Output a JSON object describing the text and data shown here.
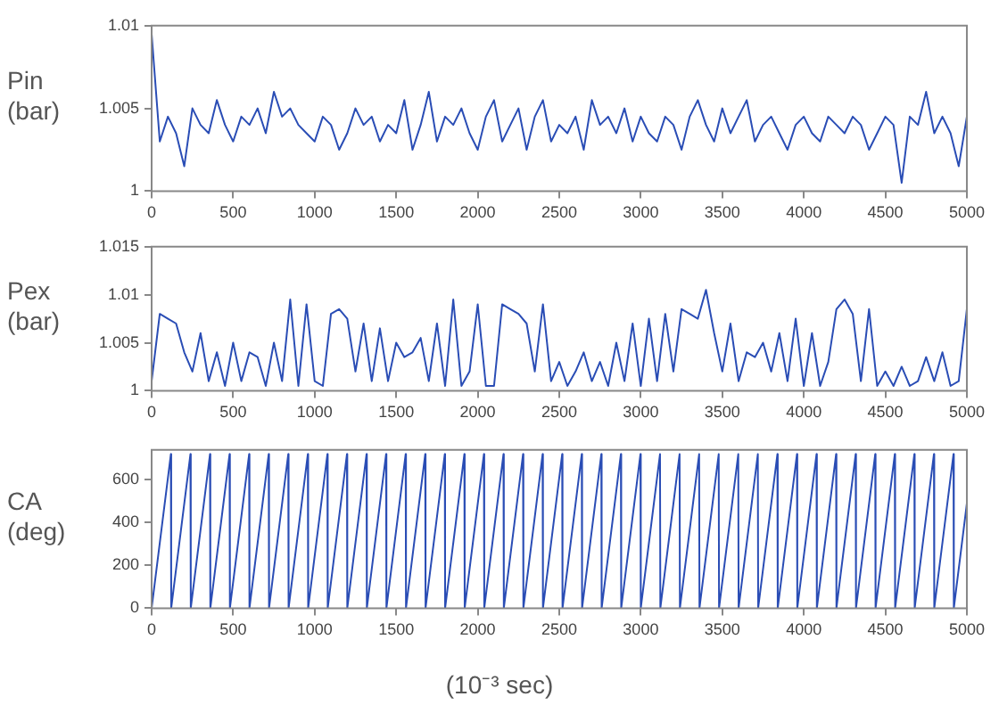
{
  "chart_data": [
    {
      "type": "line",
      "ylabel": "Pin (bar)",
      "color": "#2a4db5",
      "xlim": [
        0,
        5000
      ],
      "xticks": [
        0,
        500,
        1000,
        1500,
        2000,
        2500,
        3000,
        3500,
        4000,
        4500,
        5000
      ],
      "ylim": [
        1,
        1.01
      ],
      "yticks": [
        1,
        1.005,
        1.01
      ],
      "x": [
        0,
        50,
        100,
        150,
        200,
        250,
        300,
        350,
        400,
        450,
        500,
        550,
        600,
        650,
        700,
        750,
        800,
        850,
        900,
        950,
        1000,
        1050,
        1100,
        1150,
        1200,
        1250,
        1300,
        1350,
        1400,
        1450,
        1500,
        1550,
        1600,
        1650,
        1700,
        1750,
        1800,
        1850,
        1900,
        1950,
        2000,
        2050,
        2100,
        2150,
        2200,
        2250,
        2300,
        2350,
        2400,
        2450,
        2500,
        2550,
        2600,
        2650,
        2700,
        2750,
        2800,
        2850,
        2900,
        2950,
        3000,
        3050,
        3100,
        3150,
        3200,
        3250,
        3300,
        3350,
        3400,
        3450,
        3500,
        3550,
        3600,
        3650,
        3700,
        3750,
        3800,
        3850,
        3900,
        3950,
        4000,
        4050,
        4100,
        4150,
        4200,
        4250,
        4300,
        4350,
        4400,
        4450,
        4500,
        4550,
        4600,
        4650,
        4700,
        4750,
        4800,
        4850,
        4900,
        4950,
        5000
      ],
      "values": [
        1.0095,
        1.003,
        1.0045,
        1.0035,
        1.0015,
        1.005,
        1.004,
        1.0035,
        1.0055,
        1.004,
        1.003,
        1.0045,
        1.004,
        1.005,
        1.0035,
        1.006,
        1.0045,
        1.005,
        1.004,
        1.0035,
        1.003,
        1.0045,
        1.004,
        1.0025,
        1.0035,
        1.005,
        1.004,
        1.0045,
        1.003,
        1.004,
        1.0035,
        1.0055,
        1.0025,
        1.004,
        1.006,
        1.003,
        1.0045,
        1.004,
        1.005,
        1.0035,
        1.0025,
        1.0045,
        1.0055,
        1.003,
        1.004,
        1.005,
        1.0025,
        1.0045,
        1.0055,
        1.003,
        1.004,
        1.0035,
        1.0045,
        1.0025,
        1.0055,
        1.004,
        1.0045,
        1.0035,
        1.005,
        1.003,
        1.0045,
        1.0035,
        1.003,
        1.0045,
        1.004,
        1.0025,
        1.0045,
        1.0055,
        1.004,
        1.003,
        1.005,
        1.0035,
        1.0045,
        1.0055,
        1.003,
        1.004,
        1.0045,
        1.0035,
        1.0025,
        1.004,
        1.0045,
        1.0035,
        1.003,
        1.0045,
        1.004,
        1.0035,
        1.0045,
        1.004,
        1.0025,
        1.0035,
        1.0045,
        1.004,
        1.0005,
        1.0045,
        1.004,
        1.006,
        1.0035,
        1.0045,
        1.0035,
        1.0015,
        1.0045
      ]
    },
    {
      "type": "line",
      "ylabel": "Pex (bar)",
      "color": "#2a4db5",
      "xlim": [
        0,
        5000
      ],
      "xticks": [
        0,
        500,
        1000,
        1500,
        2000,
        2500,
        3000,
        3500,
        4000,
        4500,
        5000
      ],
      "ylim": [
        1,
        1.015
      ],
      "yticks": [
        1,
        1.005,
        1.01,
        1.015
      ],
      "x": [
        0,
        50,
        100,
        150,
        200,
        250,
        300,
        350,
        400,
        450,
        500,
        550,
        600,
        650,
        700,
        750,
        800,
        850,
        900,
        950,
        1000,
        1050,
        1100,
        1150,
        1200,
        1250,
        1300,
        1350,
        1400,
        1450,
        1500,
        1550,
        1600,
        1650,
        1700,
        1750,
        1800,
        1850,
        1900,
        1950,
        2000,
        2050,
        2100,
        2150,
        2200,
        2250,
        2300,
        2350,
        2400,
        2450,
        2500,
        2550,
        2600,
        2650,
        2700,
        2750,
        2800,
        2850,
        2900,
        2950,
        3000,
        3050,
        3100,
        3150,
        3200,
        3250,
        3300,
        3350,
        3400,
        3450,
        3500,
        3550,
        3600,
        3650,
        3700,
        3750,
        3800,
        3850,
        3900,
        3950,
        4000,
        4050,
        4100,
        4150,
        4200,
        4250,
        4300,
        4350,
        4400,
        4450,
        4500,
        4550,
        4600,
        4650,
        4700,
        4750,
        4800,
        4850,
        4900,
        4950,
        5000
      ],
      "values": [
        1.001,
        1.008,
        1.0075,
        1.007,
        1.004,
        1.002,
        1.006,
        1.001,
        1.004,
        1.0005,
        1.005,
        1.001,
        1.004,
        1.0035,
        1.0005,
        1.005,
        1.001,
        1.0095,
        1.0005,
        1.009,
        1.001,
        1.0005,
        1.008,
        1.0085,
        1.0075,
        1.002,
        1.007,
        1.001,
        1.0065,
        1.001,
        1.005,
        1.0035,
        1.004,
        1.0055,
        1.001,
        1.007,
        1.0005,
        1.0095,
        1.0005,
        1.002,
        1.009,
        1.0005,
        1.0005,
        1.009,
        1.0085,
        1.008,
        1.007,
        1.002,
        1.009,
        1.001,
        1.003,
        1.0005,
        1.002,
        1.004,
        1.001,
        1.003,
        1.0005,
        1.005,
        1.001,
        1.007,
        1.0005,
        1.0075,
        1.001,
        1.008,
        1.002,
        1.0085,
        1.008,
        1.0075,
        1.0105,
        1.006,
        1.002,
        1.007,
        1.001,
        1.004,
        1.0035,
        1.005,
        1.002,
        1.006,
        1.001,
        1.0075,
        1.0005,
        1.006,
        1.0005,
        1.003,
        1.0085,
        1.0095,
        1.008,
        1.001,
        1.0085,
        1.0005,
        1.002,
        1.0005,
        1.0025,
        1.0005,
        1.001,
        1.0035,
        1.001,
        1.004,
        1.0005,
        1.001,
        1.0085
      ]
    },
    {
      "type": "line",
      "ylabel": "CA (deg)",
      "xlabel": "(10⁻³ sec)",
      "color": "#2a4db5",
      "xlim": [
        0,
        5000
      ],
      "xticks": [
        0,
        500,
        1000,
        1500,
        2000,
        2500,
        3000,
        3500,
        4000,
        4500,
        5000
      ],
      "ylim": [
        0,
        740
      ],
      "yticks": [
        0,
        200,
        400,
        600
      ],
      "x": [
        0,
        118,
        120,
        238,
        240,
        358,
        360,
        478,
        480,
        598,
        600,
        718,
        720,
        838,
        840,
        958,
        960,
        1078,
        1080,
        1198,
        1200,
        1318,
        1320,
        1438,
        1440,
        1558,
        1560,
        1678,
        1680,
        1798,
        1800,
        1918,
        1920,
        2038,
        2040,
        2158,
        2160,
        2278,
        2280,
        2398,
        2400,
        2518,
        2520,
        2638,
        2640,
        2758,
        2760,
        2878,
        2880,
        2998,
        3000,
        3118,
        3120,
        3238,
        3240,
        3358,
        3360,
        3478,
        3480,
        3598,
        3600,
        3718,
        3720,
        3838,
        3840,
        3958,
        3960,
        4078,
        4080,
        4198,
        4200,
        4318,
        4320,
        4438,
        4440,
        4558,
        4560,
        4678,
        4680,
        4798,
        4800,
        4918,
        4920,
        5000
      ],
      "values": [
        0,
        720,
        0,
        720,
        0,
        720,
        0,
        720,
        0,
        720,
        0,
        720,
        0,
        720,
        0,
        720,
        0,
        720,
        0,
        720,
        0,
        720,
        0,
        720,
        0,
        720,
        0,
        720,
        0,
        720,
        0,
        720,
        0,
        720,
        0,
        720,
        0,
        720,
        0,
        720,
        0,
        720,
        0,
        720,
        0,
        720,
        0,
        720,
        0,
        720,
        0,
        720,
        0,
        720,
        0,
        720,
        0,
        720,
        0,
        720,
        0,
        720,
        0,
        720,
        0,
        720,
        0,
        720,
        0,
        720,
        0,
        720,
        0,
        720,
        0,
        720,
        0,
        720,
        0,
        720,
        0,
        720,
        0,
        490
      ]
    }
  ]
}
